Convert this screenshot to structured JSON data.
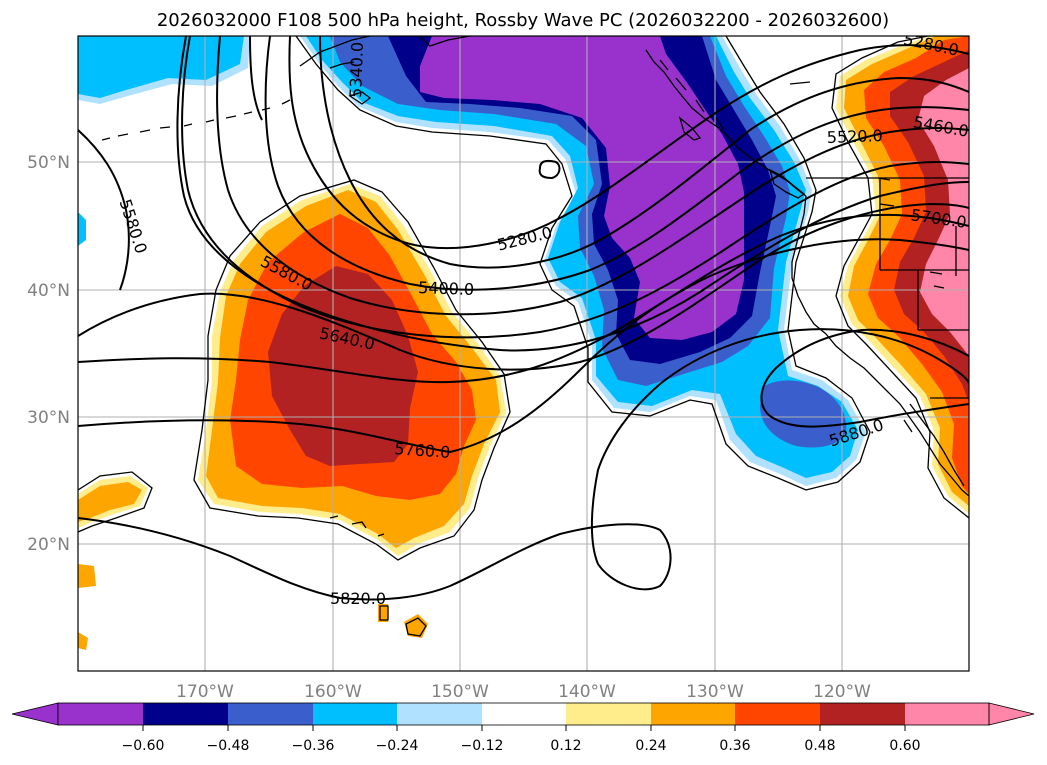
{
  "title": "2026032000 F108 500 hPa height, Rossby Wave PC (2026032200 - 2026032600)",
  "lat_labels": [
    "50°N",
    "40°N",
    "30°N",
    "20°N"
  ],
  "lon_labels": [
    "170°W",
    "160°W",
    "150°W",
    "140°W",
    "130°W",
    "120°W"
  ],
  "contour_labels": [
    "5340.0",
    "5280.0",
    "5460.0",
    "5520.0",
    "5580.0",
    "5280.0",
    "5580.0",
    "5400.0",
    "5640.0",
    "5700.0",
    "5760.0",
    "5880.0",
    "5820.0"
  ],
  "colorbar": {
    "colors": [
      "#9932cc",
      "#00008b",
      "#3a5fcd",
      "#00bfff",
      "#b0e2ff",
      "#ffffff",
      "#ffec8b",
      "#ffa500",
      "#ff4500",
      "#b22222",
      "#ff86a8"
    ],
    "tick_labels": [
      "−0.60",
      "−0.48",
      "−0.36",
      "−0.24",
      "−0.12",
      "0.12",
      "0.24",
      "0.36",
      "0.48",
      "0.60"
    ]
  },
  "shading_colors": {
    "purple": "#9932cc",
    "navy": "#00008b",
    "blue": "#3a5fcd",
    "cyan": "#00bfff",
    "lightblue": "#b0e2ff",
    "yellow": "#ffec8b",
    "orange": "#ffa500",
    "redorange": "#ff4500",
    "firebrick": "#b22222",
    "pink": "#ff86a8"
  }
}
